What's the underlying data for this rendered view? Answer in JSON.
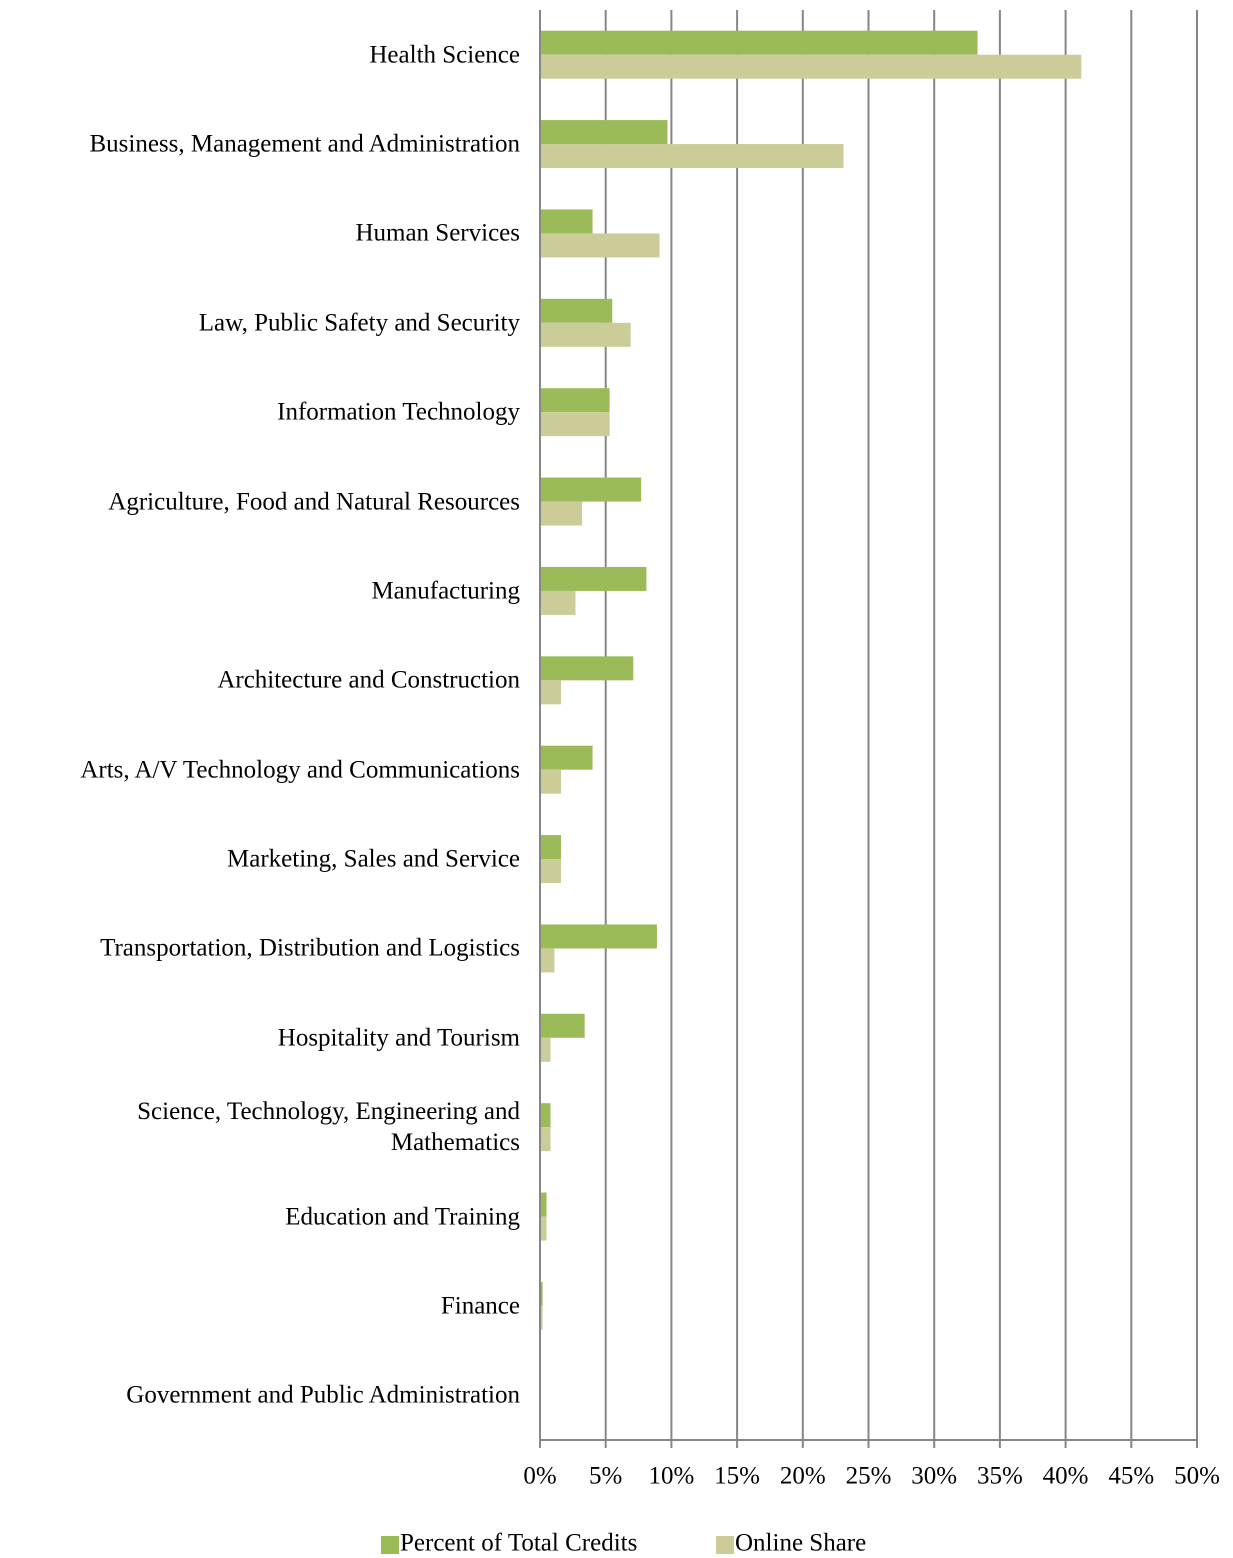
{
  "chart_data": {
    "type": "bar",
    "orientation": "horizontal",
    "categories": [
      "Health Science",
      "Business, Management and Administration",
      "Human Services",
      "Law, Public Safety and Security",
      "Information Technology",
      "Agriculture, Food and Natural Resources",
      "Manufacturing",
      "Architecture and Construction",
      "Arts, A/V Technology and Communications",
      "Marketing, Sales and Service",
      "Transportation, Distribution and Logistics",
      "Hospitality and Tourism",
      "Science, Technology, Engineering and Mathematics",
      "Education and Training",
      "Finance",
      "Government and Public Administration"
    ],
    "series": [
      {
        "name": "Percent of Total Credits",
        "color": "#9bbb59",
        "values": [
          33.3,
          9.7,
          4.0,
          5.5,
          5.3,
          7.7,
          8.1,
          7.1,
          4.0,
          1.6,
          8.9,
          3.4,
          0.8,
          0.5,
          0.2,
          0
        ]
      },
      {
        "name": "Online Share",
        "color": "#cccc99",
        "values": [
          41.2,
          23.1,
          9.1,
          6.9,
          5.3,
          3.2,
          2.7,
          1.6,
          1.6,
          1.6,
          1.1,
          0.8,
          0.8,
          0.5,
          0.2,
          0
        ]
      }
    ],
    "xlim": [
      0,
      50
    ],
    "xticks": [
      {
        "value": 0,
        "label": "0%"
      },
      {
        "value": 5,
        "label": "5%"
      },
      {
        "value": 10,
        "label": "10%"
      },
      {
        "value": 15,
        "label": "15%"
      },
      {
        "value": 20,
        "label": "20%"
      },
      {
        "value": 25,
        "label": "25%"
      },
      {
        "value": 30,
        "label": "30%"
      },
      {
        "value": 35,
        "label": "35%"
      },
      {
        "value": 40,
        "label": "40%"
      },
      {
        "value": 45,
        "label": "45%"
      },
      {
        "value": 50,
        "label": "50%"
      }
    ],
    "grid": true,
    "legend": "bottom"
  }
}
